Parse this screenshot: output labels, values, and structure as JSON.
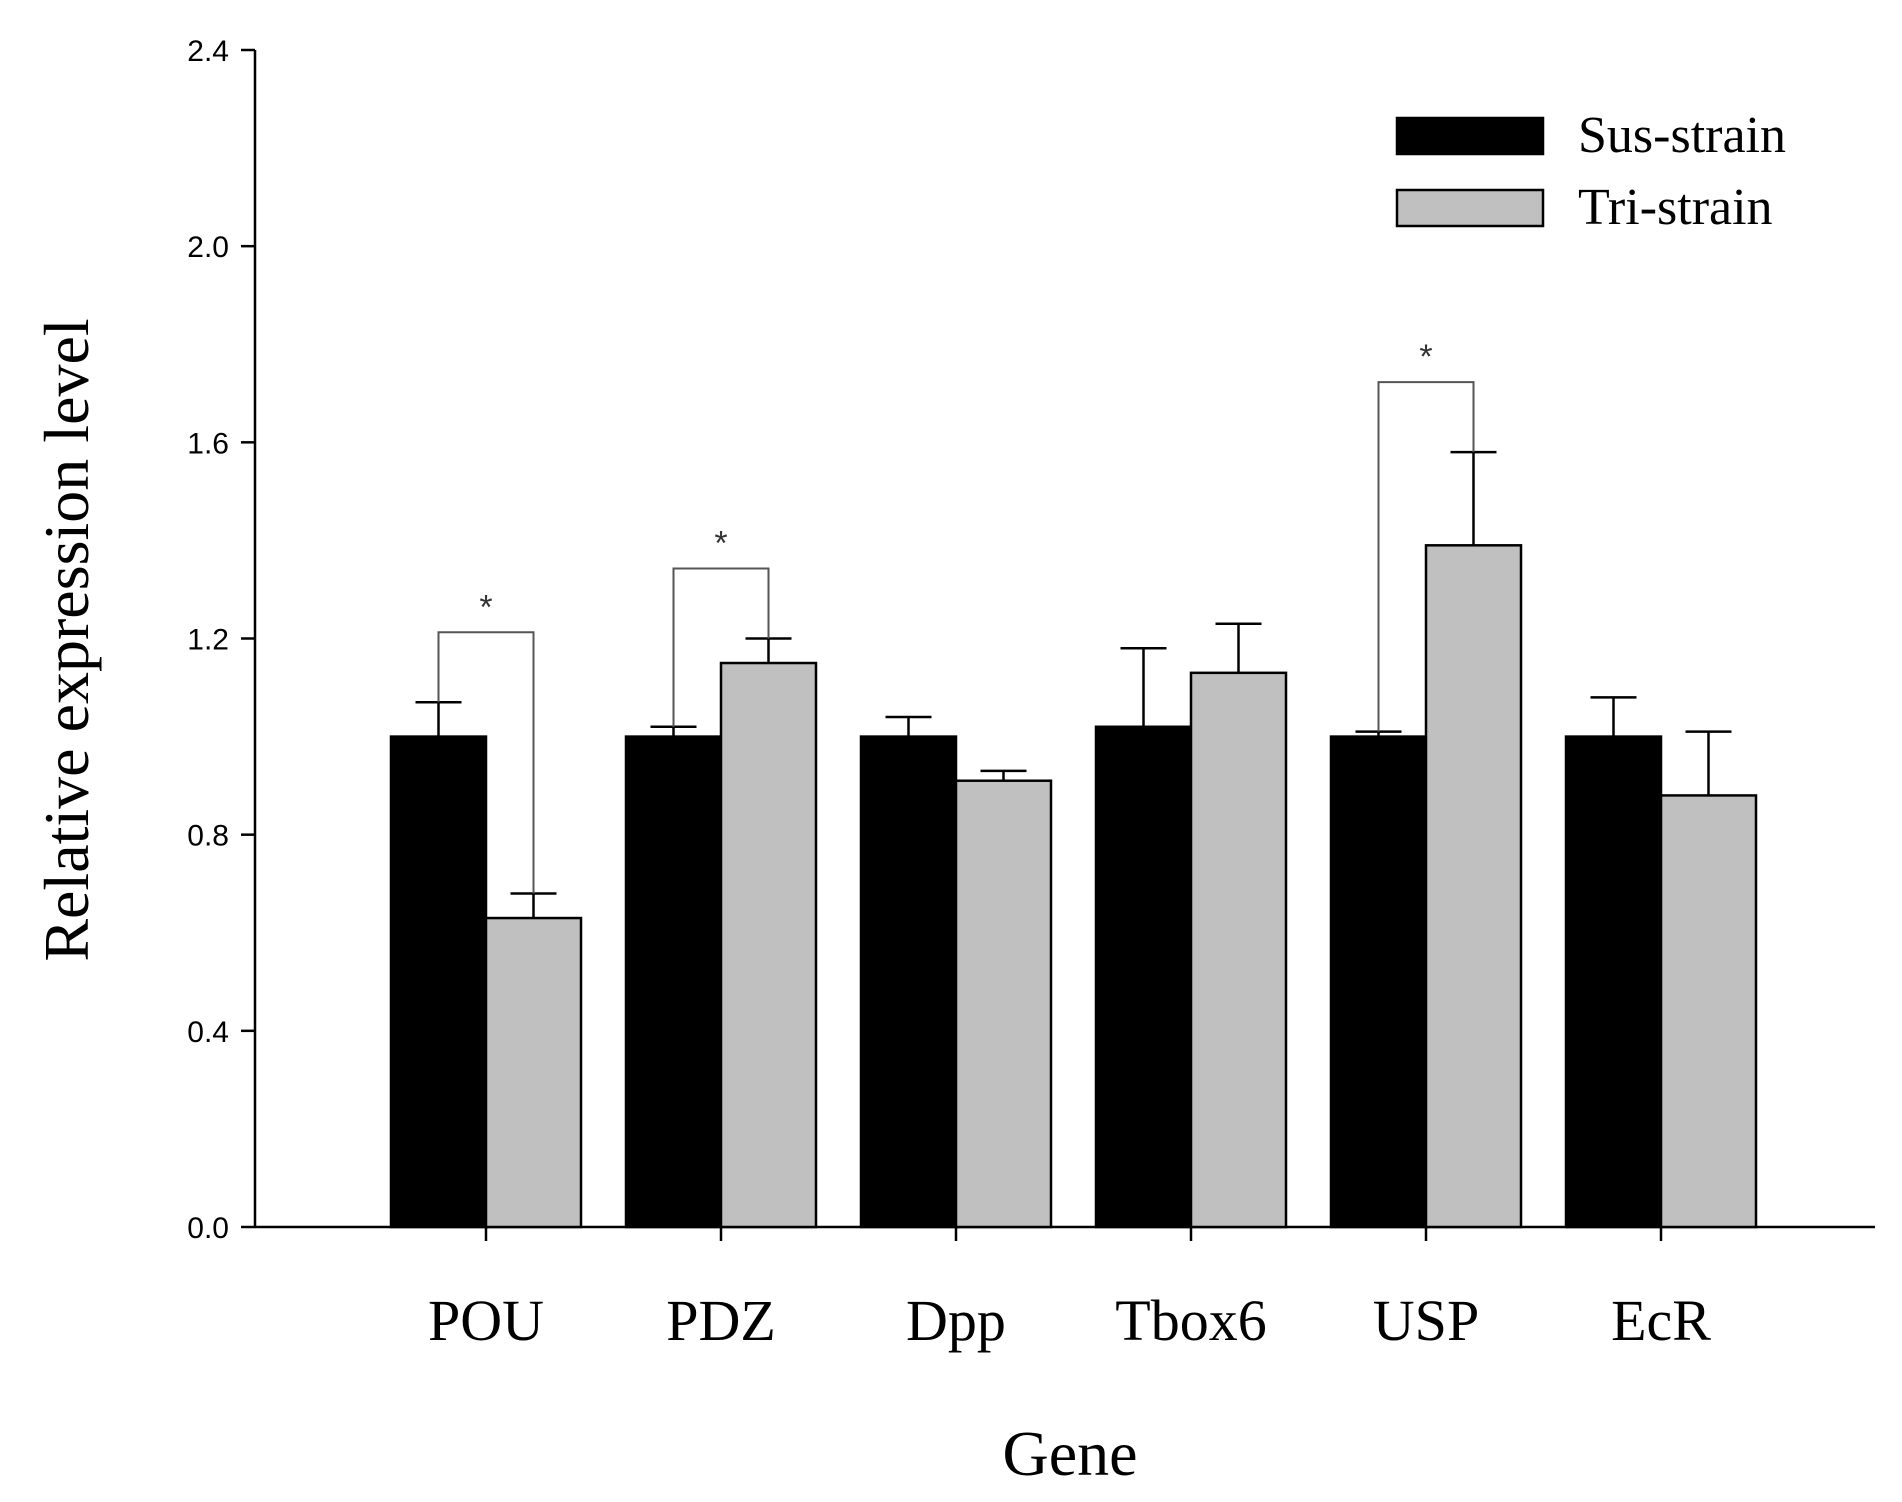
{
  "chart_data": {
    "type": "bar",
    "title": "",
    "xlabel": "Gene",
    "ylabel": "Relative expression level",
    "ylim": [
      0,
      2.4
    ],
    "yticks": [
      "0.0",
      "0.4",
      "0.8",
      "1.2",
      "1.6",
      "2.0",
      "2.4"
    ],
    "categories": [
      "POU",
      "PDZ",
      "Dpp",
      "Tbox6",
      "USP",
      "EcR"
    ],
    "series": [
      {
        "name": "Sus-strain",
        "color": "#000000",
        "values": [
          1.0,
          1.0,
          1.0,
          1.02,
          1.0,
          1.0
        ],
        "errors": [
          0.07,
          0.02,
          0.04,
          0.16,
          0.01,
          0.08
        ]
      },
      {
        "name": "Tri-strain",
        "color": "#c0c0c0",
        "values": [
          0.63,
          1.15,
          0.91,
          1.13,
          1.39,
          0.88
        ],
        "errors": [
          0.05,
          0.05,
          0.02,
          0.1,
          0.19,
          0.13
        ]
      }
    ],
    "significance": [
      {
        "category": "POU",
        "label": "*"
      },
      {
        "category": "PDZ",
        "label": "*"
      },
      {
        "category": "USP",
        "label": "*"
      }
    ],
    "legend_position": "top-right",
    "grid": false
  }
}
